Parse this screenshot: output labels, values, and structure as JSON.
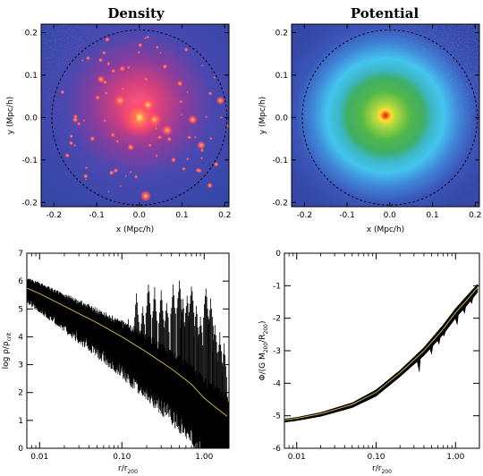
{
  "chart_data": [
    {
      "type": "heatmap",
      "panel": "density-map",
      "title": "Density",
      "xlabel": "x (Mpc/h)",
      "ylabel": "y (Mpc/h)",
      "xlim": [
        -0.23,
        0.21
      ],
      "ylim": [
        -0.21,
        0.22
      ],
      "xticks": [
        -0.2,
        -0.1,
        0.0,
        0.1,
        0.2
      ],
      "yticks": [
        -0.2,
        -0.1,
        0.0,
        0.1,
        0.2
      ],
      "xtick_labels": [
        "-0.2",
        "-0.1",
        "0.0",
        "0.1",
        "0.2"
      ],
      "ytick_labels": [
        "-0.2",
        "-0.1",
        "0.0",
        "0.1",
        "0.2"
      ],
      "circle": {
        "center": [
          0.0,
          0.0
        ],
        "radius": 0.205,
        "style": "dashed"
      },
      "colors": {
        "background": "#3a4fb0",
        "mid": "#c83c8c",
        "high": "#ff6070",
        "peak": "#ffe060"
      },
      "substructures": [
        {
          "x": 0.0,
          "y": 0.0,
          "size": 0.045
        },
        {
          "x": 0.02,
          "y": 0.03,
          "size": 0.02
        },
        {
          "x": 0.035,
          "y": -0.005,
          "size": 0.018
        },
        {
          "x": -0.045,
          "y": 0.04,
          "size": 0.015
        },
        {
          "x": 0.065,
          "y": -0.03,
          "size": 0.013
        },
        {
          "x": 0.125,
          "y": -0.005,
          "size": 0.011
        },
        {
          "x": 0.19,
          "y": 0.04,
          "size": 0.01
        },
        {
          "x": 0.145,
          "y": -0.065,
          "size": 0.01
        },
        {
          "x": 0.015,
          "y": -0.185,
          "size": 0.013
        },
        {
          "x": -0.09,
          "y": 0.09,
          "size": 0.009
        },
        {
          "x": -0.04,
          "y": 0.115,
          "size": 0.007
        },
        {
          "x": 0.095,
          "y": 0.08,
          "size": 0.007
        },
        {
          "x": -0.15,
          "y": -0.005,
          "size": 0.007
        },
        {
          "x": -0.11,
          "y": -0.05,
          "size": 0.006
        },
        {
          "x": 0.165,
          "y": -0.16,
          "size": 0.007
        },
        {
          "x": -0.065,
          "y": -0.13,
          "size": 0.006
        },
        {
          "x": 0.06,
          "y": 0.12,
          "size": 0.006
        },
        {
          "x": 0.18,
          "y": -0.11,
          "size": 0.006
        },
        {
          "x": -0.18,
          "y": 0.06,
          "size": 0.005
        },
        {
          "x": 0.11,
          "y": 0.16,
          "size": 0.005
        },
        {
          "x": -0.02,
          "y": -0.07,
          "size": 0.008
        },
        {
          "x": 0.08,
          "y": -0.1,
          "size": 0.006
        },
        {
          "x": -0.12,
          "y": 0.14,
          "size": 0.005
        },
        {
          "x": 0.21,
          "y": -0.02,
          "size": 0.006
        }
      ]
    },
    {
      "type": "heatmap",
      "panel": "potential-map",
      "title": "Potential",
      "xlabel": "x (Mpc/h)",
      "ylabel": "y (Mpc/h)",
      "xlim": [
        -0.23,
        0.21
      ],
      "ylim": [
        -0.21,
        0.22
      ],
      "xticks": [
        -0.2,
        -0.1,
        0.0,
        0.1,
        0.2
      ],
      "yticks": [
        -0.2,
        -0.1,
        0.0,
        0.1,
        0.2
      ],
      "xtick_labels": [
        "-0.2",
        "-0.1",
        "0.0",
        "0.1",
        "0.2"
      ],
      "ytick_labels": [
        "-0.2",
        "-0.1",
        "0.0",
        "0.1",
        "0.2"
      ],
      "circle": {
        "center": [
          0.0,
          0.0
        ],
        "radius": 0.205,
        "style": "dashed"
      },
      "colors": {
        "outer": "#3a4fb0",
        "ring": "#40c8ec",
        "inner": "#4cb84a",
        "core": "#ffdd30",
        "peak": "#e01010"
      }
    },
    {
      "type": "scatter",
      "panel": "density-profile",
      "xscale": "log",
      "xlim": [
        0.007,
        2.0
      ],
      "ylim": [
        0,
        7
      ],
      "xticks": [
        0.01,
        0.1,
        1.0
      ],
      "xtick_labels": [
        "0.01",
        "0.10",
        "1.00"
      ],
      "yticks": [
        0,
        1,
        2,
        3,
        4,
        5,
        6,
        7
      ],
      "ytick_labels": [
        "0",
        "1",
        "2",
        "3",
        "4",
        "5",
        "6",
        "7"
      ],
      "xlabel": "r/r200",
      "ylabel": "log ρ/ρcrit",
      "mean_profile": {
        "x": [
          0.007,
          0.01,
          0.02,
          0.05,
          0.1,
          0.2,
          0.4,
          0.7,
          1.0,
          1.4,
          1.9
        ],
        "y": [
          5.75,
          5.55,
          5.1,
          4.5,
          4.0,
          3.45,
          2.85,
          2.3,
          1.8,
          1.45,
          1.15
        ],
        "color": "#c8b040"
      },
      "spikes": [
        {
          "x": 0.12,
          "y": 4.7
        },
        {
          "x": 0.15,
          "y": 5.6
        },
        {
          "x": 0.18,
          "y": 5.2
        },
        {
          "x": 0.21,
          "y": 6.0
        },
        {
          "x": 0.25,
          "y": 5.8
        },
        {
          "x": 0.3,
          "y": 5.7
        },
        {
          "x": 0.35,
          "y": 5.4
        },
        {
          "x": 0.42,
          "y": 5.9
        },
        {
          "x": 0.5,
          "y": 6.1
        },
        {
          "x": 0.55,
          "y": 5.4
        },
        {
          "x": 0.62,
          "y": 5.6
        },
        {
          "x": 0.7,
          "y": 6.0
        },
        {
          "x": 0.8,
          "y": 5.2
        },
        {
          "x": 0.9,
          "y": 4.9
        },
        {
          "x": 1.05,
          "y": 5.9
        },
        {
          "x": 1.2,
          "y": 5.5
        },
        {
          "x": 1.35,
          "y": 4.6
        },
        {
          "x": 1.55,
          "y": 4.2
        },
        {
          "x": 1.75,
          "y": 3.8
        }
      ],
      "colors": {
        "scatter": "#000000"
      }
    },
    {
      "type": "line",
      "panel": "potential-profile",
      "xscale": "log",
      "xlim": [
        0.007,
        2.0
      ],
      "ylim": [
        -6,
        0
      ],
      "xticks": [
        0.01,
        0.1,
        1.0
      ],
      "xtick_labels": [
        "0.01",
        "0.10",
        "1.00"
      ],
      "yticks": [
        -6,
        -5,
        -4,
        -3,
        -2,
        -1,
        0
      ],
      "ytick_labels": [
        "-6",
        "-5",
        "-4",
        "-3",
        "-2",
        "-1",
        "0"
      ],
      "xlabel": "r/r200",
      "ylabel": "Φ/(G M200/R200)",
      "upper": {
        "x": [
          0.007,
          0.01,
          0.02,
          0.05,
          0.1,
          0.2,
          0.4,
          0.7,
          1.0,
          1.4,
          1.9
        ],
        "y": [
          -5.1,
          -5.05,
          -4.9,
          -4.6,
          -4.2,
          -3.6,
          -2.9,
          -2.2,
          -1.7,
          -1.3,
          -0.95
        ]
      },
      "lower": {
        "x": [
          0.007,
          0.01,
          0.02,
          0.05,
          0.1,
          0.2,
          0.4,
          0.7,
          1.0,
          1.4,
          1.9
        ],
        "y": [
          -5.2,
          -5.15,
          -5.02,
          -4.75,
          -4.4,
          -3.8,
          -3.15,
          -2.5,
          -2.0,
          -1.6,
          -1.2
        ]
      },
      "dips": [
        {
          "x": 0.35,
          "y": -3.65
        },
        {
          "x": 0.5,
          "y": -3.1
        },
        {
          "x": 0.62,
          "y": -2.8
        },
        {
          "x": 0.72,
          "y": -2.55
        },
        {
          "x": 1.05,
          "y": -2.2
        },
        {
          "x": 1.3,
          "y": -1.85
        },
        {
          "x": 1.6,
          "y": -1.55
        }
      ],
      "mean_profile_color": "#c8b040",
      "colors": {
        "band": "#000000"
      }
    }
  ]
}
